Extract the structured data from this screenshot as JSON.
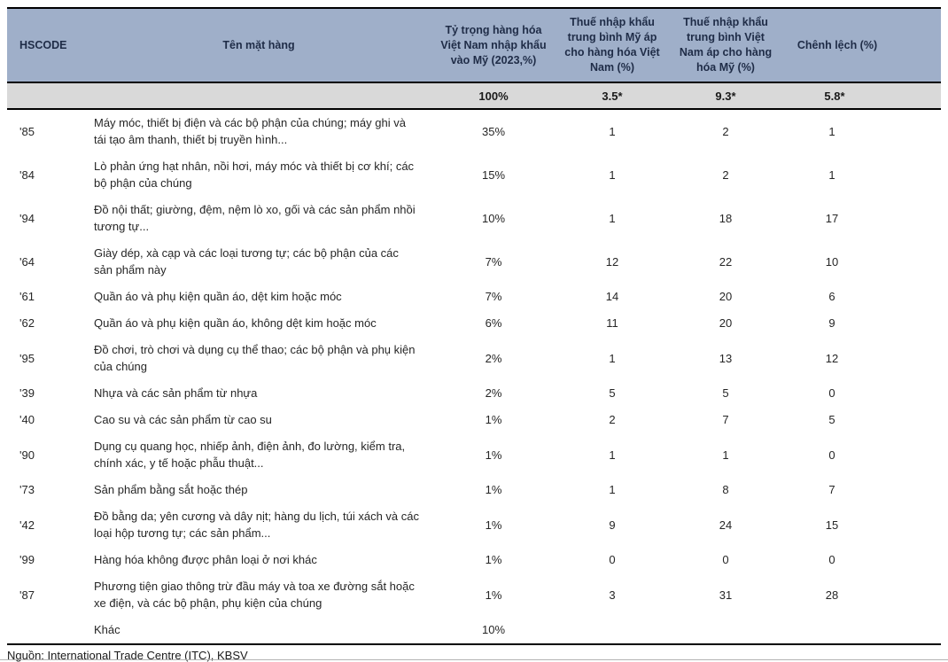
{
  "chart_data": {
    "type": "table",
    "columns": [
      {
        "key": "hscode",
        "label": "HSCODE"
      },
      {
        "key": "name",
        "label": "Tên mặt hàng"
      },
      {
        "key": "share",
        "label": "Tỷ trọng hàng hóa Việt Nam nhập khẩu vào Mỹ (2023,%)"
      },
      {
        "key": "us_tariff",
        "label": "Thuế nhập khẩu trung bình Mỹ áp cho hàng hóa Việt Nam (%)"
      },
      {
        "key": "vn_tariff",
        "label": "Thuế nhập khẩu trung bình Việt Nam áp cho hàng hóa Mỹ (%)"
      },
      {
        "key": "gap",
        "label": "Chênh lệch (%)"
      }
    ],
    "summary_row": {
      "hscode": "",
      "name": "",
      "share": "100%",
      "us_tariff": "3.5*",
      "vn_tariff": "9.3*",
      "gap": "5.8*"
    },
    "rows": [
      {
        "hscode": "'85",
        "name": "Máy móc, thiết bị điện và các bộ phận của chúng; máy ghi và tái tạo âm thanh, thiết bị truyền hình...",
        "share": "35%",
        "us_tariff": "1",
        "vn_tariff": "2",
        "gap": "1"
      },
      {
        "hscode": "'84",
        "name": "Lò phản ứng hạt nhân, nồi hơi, máy móc và thiết bị cơ khí; các bộ phận của chúng",
        "share": "15%",
        "us_tariff": "1",
        "vn_tariff": "2",
        "gap": "1"
      },
      {
        "hscode": "'94",
        "name": "Đồ nội thất; giường, đệm, nệm lò xo, gối và các sản phẩm nhồi tương tự...",
        "share": "10%",
        "us_tariff": "1",
        "vn_tariff": "18",
        "gap": "17"
      },
      {
        "hscode": "'64",
        "name": "Giày dép, xà cạp và các loại tương tự; các bộ phận của các sản phẩm này",
        "share": "7%",
        "us_tariff": "12",
        "vn_tariff": "22",
        "gap": "10"
      },
      {
        "hscode": "'61",
        "name": "Quần áo và phụ kiện quần áo, dệt kim hoặc móc",
        "share": "7%",
        "us_tariff": "14",
        "vn_tariff": "20",
        "gap": "6"
      },
      {
        "hscode": "'62",
        "name": "Quần áo và phụ kiện quần áo, không dệt kim hoặc móc",
        "share": "6%",
        "us_tariff": "11",
        "vn_tariff": "20",
        "gap": "9"
      },
      {
        "hscode": "'95",
        "name": "Đồ chơi, trò chơi và dụng cụ thể thao; các bộ phận và phụ kiện của chúng",
        "share": "2%",
        "us_tariff": "1",
        "vn_tariff": "13",
        "gap": "12"
      },
      {
        "hscode": "'39",
        "name": "Nhựa và các sản phẩm từ nhựa",
        "share": "2%",
        "us_tariff": "5",
        "vn_tariff": "5",
        "gap": "0"
      },
      {
        "hscode": "'40",
        "name": "Cao su và các sản phẩm từ cao su",
        "share": "1%",
        "us_tariff": "2",
        "vn_tariff": "7",
        "gap": "5"
      },
      {
        "hscode": "'90",
        "name": "Dụng cụ quang học, nhiếp ảnh, điện ảnh, đo lường, kiểm tra, chính xác, y tế hoặc phẫu thuật...",
        "share": "1%",
        "us_tariff": "1",
        "vn_tariff": "1",
        "gap": "0"
      },
      {
        "hscode": "'73",
        "name": "Sản phẩm bằng sắt hoặc thép",
        "share": "1%",
        "us_tariff": "1",
        "vn_tariff": "8",
        "gap": "7"
      },
      {
        "hscode": "'42",
        "name": "Đồ bằng da; yên cương và dây nịt; hàng du lịch, túi xách và các loại hộp tương tự; các sản phẩm...",
        "share": "1%",
        "us_tariff": "9",
        "vn_tariff": "24",
        "gap": "15"
      },
      {
        "hscode": "'99",
        "name": "Hàng hóa không được phân loại ở nơi khác",
        "share": "1%",
        "us_tariff": "0",
        "vn_tariff": "0",
        "gap": "0"
      },
      {
        "hscode": "'87",
        "name": "Phương tiện giao thông trừ đầu máy và toa xe đường sắt hoặc xe điện, và các bộ phận, phụ kiện của chúng",
        "share": "1%",
        "us_tariff": "3",
        "vn_tariff": "31",
        "gap": "28"
      },
      {
        "hscode": "",
        "name": "Khác",
        "share": "10%",
        "us_tariff": "",
        "vn_tariff": "",
        "gap": ""
      }
    ],
    "source_note": "Nguồn: International Trade Centre (ITC), KBSV",
    "colors": {
      "header_bg": "#9fafc9",
      "header_text": "#1f2c47",
      "subheader_bg": "#d9d9d9",
      "body_text": "#262626",
      "rule": "#000000"
    },
    "layout": {
      "grid": "horizontal rules only, no cell borders",
      "legend": "none"
    }
  }
}
